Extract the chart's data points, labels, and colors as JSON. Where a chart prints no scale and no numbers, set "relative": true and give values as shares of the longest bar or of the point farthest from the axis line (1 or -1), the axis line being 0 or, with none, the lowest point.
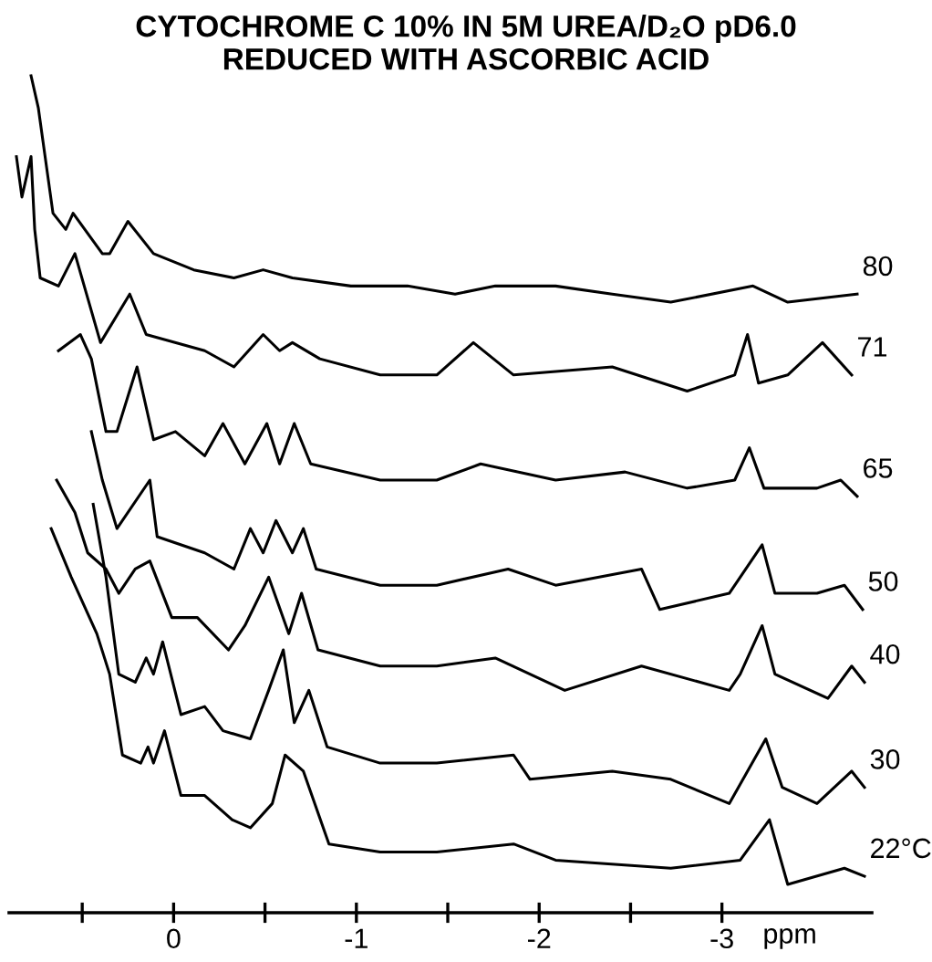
{
  "chart_data": {
    "type": "line",
    "title": "CYTOCHROME C 10% IN 5M UREA/D₂O pD6.0",
    "subtitle": "REDUCED WITH ASCORBIC ACID",
    "xlabel": "ppm",
    "relative": true,
    "xlim": [
      0.9,
      -3.82
    ],
    "xticks": [
      {
        "value": 0.5,
        "label": null
      },
      0,
      {
        "value": -0.5,
        "label": null
      },
      -1,
      {
        "value": -1.5,
        "label": null
      },
      -2,
      {
        "value": -2.5,
        "label": null
      },
      -3
    ],
    "tick_labels": "x",
    "series": [
      {
        "name": "80",
        "color": "#000000",
        "x": [
          0.78,
          0.74,
          0.66,
          0.59,
          0.55,
          0.39,
          0.35,
          0.25,
          0.11,
          -0.11,
          -0.33,
          -0.49,
          -0.65,
          -0.97,
          -1.28,
          -1.54,
          -1.76,
          -2.09,
          -2.4,
          -2.72,
          -3.17,
          -3.36,
          -3.74
        ],
        "values": [
          1.0,
          0.96,
          0.83,
          0.81,
          0.83,
          0.78,
          0.78,
          0.82,
          0.78,
          0.76,
          0.75,
          0.76,
          0.75,
          0.74,
          0.74,
          0.73,
          0.74,
          0.74,
          0.73,
          0.72,
          0.74,
          0.72,
          0.73
        ]
      },
      {
        "name": "71",
        "color": "#000000",
        "x": [
          0.86,
          0.83,
          0.78,
          0.76,
          0.73,
          0.63,
          0.54,
          0.4,
          0.24,
          0.15,
          -0.17,
          -0.33,
          -0.49,
          -0.58,
          -0.65,
          -0.8,
          -1.13,
          -1.44,
          -1.64,
          -1.86,
          -2.4,
          -2.81,
          -3.07,
          -3.14,
          -3.2,
          -3.36,
          -3.55,
          -3.71
        ],
        "values": [
          0.9,
          0.85,
          0.9,
          0.81,
          0.75,
          0.74,
          0.78,
          0.67,
          0.73,
          0.68,
          0.66,
          0.64,
          0.68,
          0.66,
          0.67,
          0.65,
          0.63,
          0.63,
          0.67,
          0.63,
          0.64,
          0.61,
          0.63,
          0.68,
          0.62,
          0.63,
          0.67,
          0.63
        ]
      },
      {
        "name": "65",
        "color": "#000000",
        "x": [
          0.63,
          0.51,
          0.45,
          0.37,
          0.31,
          0.2,
          0.11,
          -0.01,
          -0.17,
          -0.27,
          -0.39,
          -0.51,
          -0.58,
          -0.66,
          -0.75,
          -1.13,
          -1.44,
          -1.68,
          -2.09,
          -2.47,
          -2.81,
          -3.07,
          -3.15,
          -3.23,
          -3.52,
          -3.65,
          -3.74
        ],
        "values": [
          0.66,
          0.68,
          0.65,
          0.56,
          0.56,
          0.64,
          0.55,
          0.56,
          0.53,
          0.57,
          0.52,
          0.57,
          0.52,
          0.57,
          0.52,
          0.5,
          0.5,
          0.52,
          0.5,
          0.51,
          0.49,
          0.5,
          0.54,
          0.49,
          0.49,
          0.5,
          0.48
        ]
      },
      {
        "name": "50",
        "color": "#000000",
        "x": [
          0.45,
          0.39,
          0.31,
          0.13,
          0.09,
          -0.17,
          -0.33,
          -0.42,
          -0.49,
          -0.56,
          -0.65,
          -0.71,
          -0.78,
          -1.13,
          -1.44,
          -1.83,
          -2.09,
          -2.56,
          -2.66,
          -3.04,
          -3.22,
          -3.29,
          -3.52,
          -3.67,
          -3.77
        ],
        "values": [
          0.56,
          0.5,
          0.44,
          0.5,
          0.43,
          0.41,
          0.39,
          0.44,
          0.41,
          0.45,
          0.41,
          0.44,
          0.39,
          0.37,
          0.37,
          0.39,
          0.37,
          0.39,
          0.34,
          0.36,
          0.42,
          0.36,
          0.36,
          0.37,
          0.34
        ]
      },
      {
        "name": "40",
        "color": "#000000",
        "x": [
          0.64,
          0.54,
          0.47,
          0.37,
          0.3,
          0.21,
          0.13,
          0.01,
          -0.13,
          -0.3,
          -0.39,
          -0.52,
          -0.63,
          -0.7,
          -0.79,
          -1.13,
          -1.44,
          -1.76,
          -2.14,
          -2.56,
          -3.04,
          -3.1,
          -3.22,
          -3.29,
          -3.58,
          -3.71,
          -3.78
        ],
        "values": [
          0.5,
          0.46,
          0.41,
          0.39,
          0.36,
          0.39,
          0.4,
          0.33,
          0.33,
          0.29,
          0.32,
          0.38,
          0.31,
          0.36,
          0.29,
          0.27,
          0.27,
          0.28,
          0.24,
          0.27,
          0.24,
          0.26,
          0.32,
          0.26,
          0.23,
          0.27,
          0.25
        ]
      },
      {
        "name": "30",
        "color": "#000000",
        "x": [
          0.44,
          0.37,
          0.3,
          0.21,
          0.15,
          0.11,
          0.06,
          -0.04,
          -0.17,
          -0.27,
          -0.42,
          -0.52,
          -0.6,
          -0.66,
          -0.74,
          -0.84,
          -1.13,
          -1.44,
          -1.86,
          -1.95,
          -2.4,
          -2.72,
          -3.04,
          -3.24,
          -3.33,
          -3.52,
          -3.71,
          -3.78
        ],
        "values": [
          0.47,
          0.38,
          0.26,
          0.25,
          0.28,
          0.26,
          0.3,
          0.21,
          0.22,
          0.19,
          0.18,
          0.24,
          0.29,
          0.2,
          0.24,
          0.17,
          0.15,
          0.15,
          0.16,
          0.13,
          0.14,
          0.13,
          0.1,
          0.18,
          0.12,
          0.1,
          0.14,
          0.12
        ]
      },
      {
        "name": "22°C",
        "color": "#000000",
        "x": [
          0.67,
          0.56,
          0.42,
          0.35,
          0.28,
          0.18,
          0.14,
          0.11,
          0.05,
          -0.04,
          -0.17,
          -0.32,
          -0.42,
          -0.54,
          -0.61,
          -0.71,
          -0.85,
          -1.13,
          -1.44,
          -1.86,
          -2.09,
          -2.72,
          -3.1,
          -3.26,
          -3.36,
          -3.67,
          -3.78
        ],
        "values": [
          0.44,
          0.38,
          0.31,
          0.26,
          0.16,
          0.15,
          0.17,
          0.15,
          0.19,
          0.11,
          0.11,
          0.08,
          0.07,
          0.1,
          0.16,
          0.14,
          0.05,
          0.04,
          0.04,
          0.05,
          0.03,
          0.02,
          0.03,
          0.08,
          0.0,
          0.02,
          0.01
        ]
      }
    ]
  }
}
